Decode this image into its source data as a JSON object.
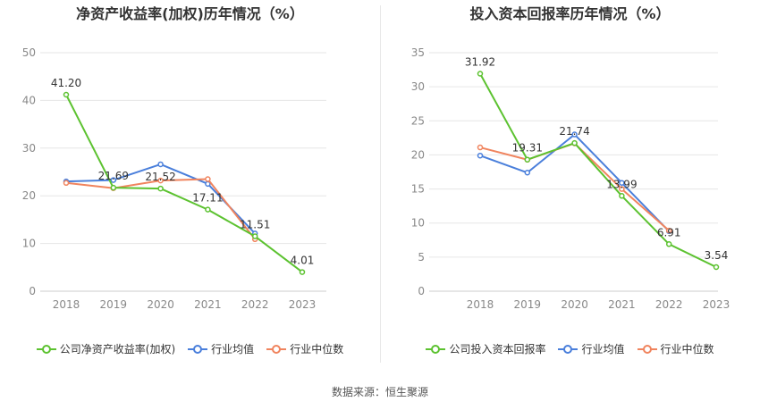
{
  "source_label": "数据来源：恒生聚源",
  "chart_data": [
    {
      "type": "line",
      "title": "净资产收益率(加权)历年情况（%）",
      "xlabel": "",
      "ylabel": "",
      "categories": [
        "2018",
        "2019",
        "2020",
        "2021",
        "2022",
        "2023"
      ],
      "ylim": [
        0,
        50
      ],
      "yticks": [
        0,
        10,
        20,
        30,
        40,
        50
      ],
      "grid": true,
      "legend_placement": "bottom",
      "series": [
        {
          "name": "公司净资产收益率(加权)",
          "color": "#5cc230",
          "values": [
            41.2,
            21.69,
            21.52,
            17.11,
            11.51,
            4.01
          ],
          "labels": [
            "41.20",
            "21.69",
            "21.52",
            "17.11",
            "11.51",
            "4.01"
          ]
        },
        {
          "name": "行业均值",
          "color": "#4a7fdb",
          "values": [
            23.0,
            23.3,
            26.6,
            22.5,
            12.1,
            null
          ],
          "labels": null
        },
        {
          "name": "行业中位数",
          "color": "#f0845e",
          "values": [
            22.7,
            21.6,
            23.2,
            23.5,
            10.9,
            null
          ],
          "labels": null
        }
      ]
    },
    {
      "type": "line",
      "title": "投入资本回报率历年情况（%）",
      "xlabel": "",
      "ylabel": "",
      "categories": [
        "2018",
        "2019",
        "2020",
        "2021",
        "2022",
        "2023"
      ],
      "ylim": [
        0,
        35
      ],
      "yticks": [
        0,
        5,
        10,
        15,
        20,
        25,
        30,
        35
      ],
      "grid": true,
      "legend_placement": "bottom",
      "series": [
        {
          "name": "公司投入资本回报率",
          "color": "#5cc230",
          "values": [
            31.92,
            19.31,
            21.74,
            13.99,
            6.91,
            3.54
          ],
          "labels": [
            "31.92",
            "19.31",
            "21.74",
            "13.99",
            "6.91",
            "3.54"
          ]
        },
        {
          "name": "行业均值",
          "color": "#4a7fdb",
          "values": [
            19.9,
            17.4,
            23.0,
            15.9,
            8.8,
            null
          ],
          "labels": null
        },
        {
          "name": "行业中位数",
          "color": "#f0845e",
          "values": [
            21.1,
            19.3,
            21.7,
            15.0,
            8.9,
            null
          ],
          "labels": null
        }
      ]
    }
  ]
}
